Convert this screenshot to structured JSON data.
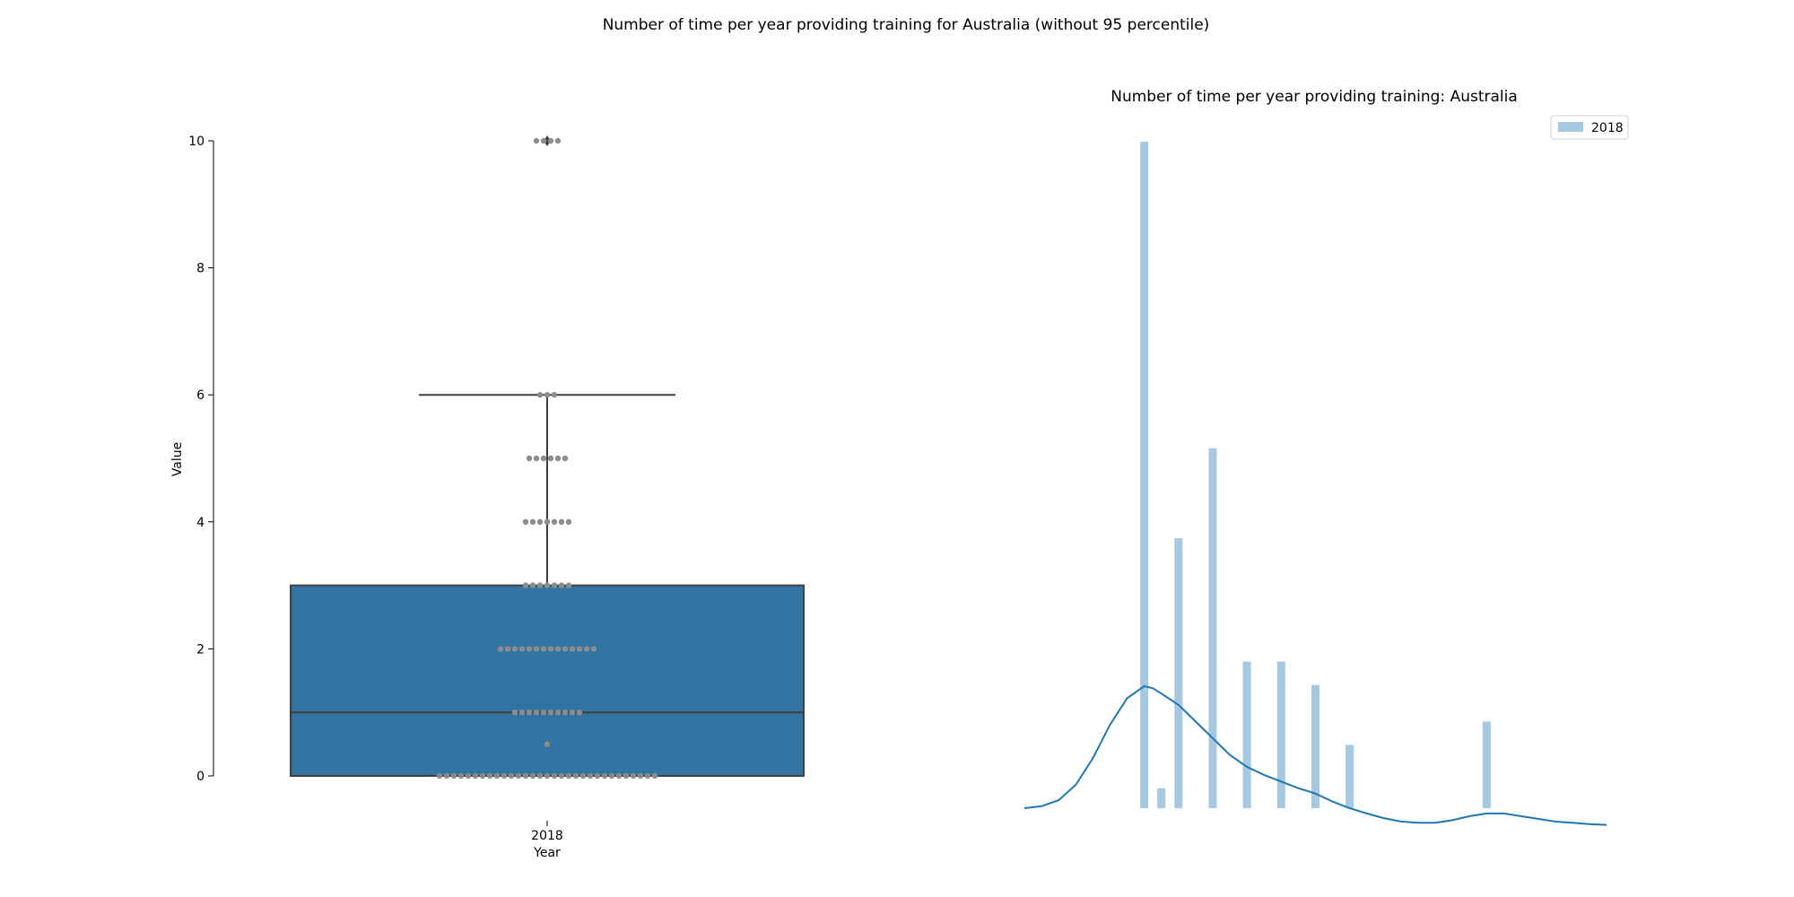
{
  "figure": {
    "suptitle": "Number of time per year providing training for Australia (without 95 percentile)"
  },
  "colors": {
    "box_fill": "#3274a1",
    "box_edge": "#3f3f3f",
    "swarm_point": "#8c8c8c",
    "hist_bar": "#a6c8e0",
    "kde_line": "#1f77b4"
  },
  "chart_data": [
    {
      "type": "box",
      "title": "",
      "xlabel": "Year",
      "ylabel": "Value",
      "categories": [
        "2018"
      ],
      "ylim": [
        0,
        10
      ],
      "yticks": [
        0,
        2,
        4,
        6,
        8,
        10
      ],
      "box": {
        "q1": 0,
        "median": 1,
        "q3": 3,
        "whisker_low": 0,
        "whisker_high": 6
      },
      "outliers": [
        10
      ],
      "swarm": [
        {
          "value": 0,
          "count": 31
        },
        {
          "value": 0.5,
          "count": 1
        },
        {
          "value": 1,
          "count": 10
        },
        {
          "value": 2,
          "count": 14
        },
        {
          "value": 3,
          "count": 7
        },
        {
          "value": 4,
          "count": 7
        },
        {
          "value": 5,
          "count": 6
        },
        {
          "value": 6,
          "count": 3
        },
        {
          "value": 10,
          "count": 4
        }
      ]
    },
    {
      "type": "histogram",
      "title": "Number of time per year providing training: Australia",
      "legend": {
        "position": "top-right",
        "entries": [
          "2018"
        ]
      },
      "axes_visible": false,
      "xlim": [
        -3.5,
        13.5
      ],
      "bins": [
        {
          "x": 0,
          "height": 1.0
        },
        {
          "x": 0.5,
          "height": 0.03
        },
        {
          "x": 1,
          "height": 0.405
        },
        {
          "x": 2,
          "height": 0.54
        },
        {
          "x": 3,
          "height": 0.22
        },
        {
          "x": 4,
          "height": 0.22
        },
        {
          "x": 5,
          "height": 0.185
        },
        {
          "x": 6,
          "height": 0.095
        },
        {
          "x": 10,
          "height": 0.13
        }
      ],
      "kde": {
        "x": [
          -3.5,
          -3,
          -2.5,
          -2,
          -1.5,
          -1,
          -0.5,
          0,
          0.25,
          0.5,
          1,
          1.5,
          2,
          2.5,
          3,
          3.5,
          4,
          4.5,
          5,
          5.5,
          6,
          6.5,
          7,
          7.5,
          8,
          8.5,
          9,
          9.5,
          10,
          10.5,
          11,
          11.5,
          12,
          12.5,
          13,
          13.5
        ],
        "y": [
          0.0,
          0.003,
          0.012,
          0.035,
          0.075,
          0.125,
          0.165,
          0.183,
          0.18,
          0.172,
          0.155,
          0.13,
          0.105,
          0.08,
          0.062,
          0.05,
          0.04,
          0.03,
          0.022,
          0.01,
          0.0,
          -0.008,
          -0.015,
          -0.02,
          -0.022,
          -0.022,
          -0.018,
          -0.012,
          -0.008,
          -0.008,
          -0.012,
          -0.016,
          -0.02,
          -0.022,
          -0.024,
          -0.025
        ]
      }
    }
  ]
}
